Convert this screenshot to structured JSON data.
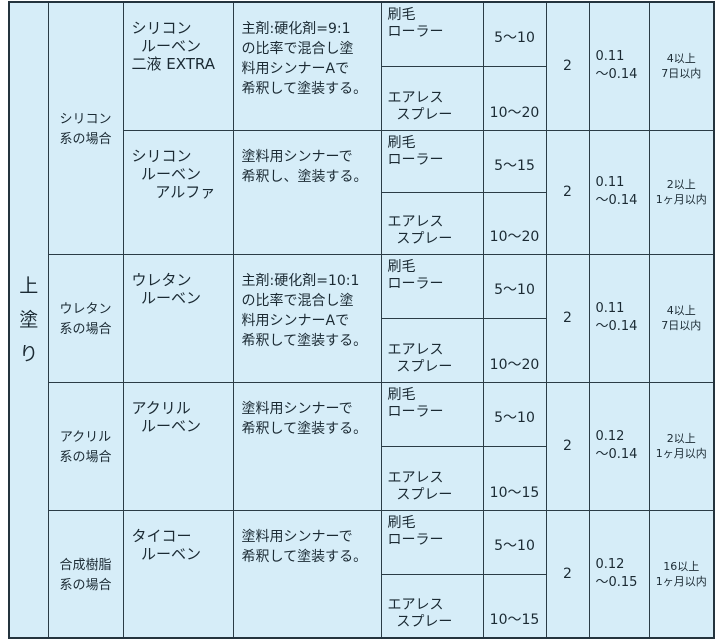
{
  "section_label": "上\n塗\nり",
  "groups": [
    {
      "category": "シリコン\n系の場合",
      "products": [
        {
          "name": "シリコン\n  ルーベン\n二液 EXTRA",
          "note": "主剤:硬化剤=9:1\nの比率で混合し塗\n料用シンナーAで\n希釈して塗装する。",
          "methods": [
            {
              "name": "刷毛\nローラー",
              "thinning": "5〜10"
            },
            {
              "name": "エアレス\n  スプレー",
              "thinning": "10〜20"
            }
          ],
          "coats": "2",
          "amount": "0.11\n〜0.14",
          "interval": "4以上\n7日以内"
        },
        {
          "name": "シリコン\n  ルーベン\n     アルファ",
          "note": "塗料用シンナーで\n希釈し、塗装する。",
          "methods": [
            {
              "name": "刷毛\nローラー",
              "thinning": "5〜15"
            },
            {
              "name": "エアレス\n  スプレー",
              "thinning": "10〜20"
            }
          ],
          "coats": "2",
          "amount": "0.11\n〜0.14",
          "interval": "2以上\n1ヶ月以内"
        }
      ]
    },
    {
      "category": "ウレタン\n系の場合",
      "products": [
        {
          "name": "ウレタン\n  ルーベン",
          "note": "主剤:硬化剤=10:1\nの比率で混合し塗\n料用シンナーAで\n希釈して塗装する。",
          "methods": [
            {
              "name": "刷毛\nローラー",
              "thinning": "5〜10"
            },
            {
              "name": "エアレス\n  スプレー",
              "thinning": "10〜20"
            }
          ],
          "coats": "2",
          "amount": "0.11\n〜0.14",
          "interval": "4以上\n7日以内"
        }
      ]
    },
    {
      "category": "アクリル\n系の場合",
      "products": [
        {
          "name": "アクリル\n  ルーベン",
          "note": "塗料用シンナーで\n希釈して塗装する。",
          "methods": [
            {
              "name": "刷毛\nローラー",
              "thinning": "5〜10"
            },
            {
              "name": "エアレス\n  スプレー",
              "thinning": "10〜15"
            }
          ],
          "coats": "2",
          "amount": "0.12\n〜0.14",
          "interval": "2以上\n1ヶ月以内"
        }
      ]
    },
    {
      "category": "合成樹脂\n系の場合",
      "products": [
        {
          "name": "タイコー\n  ルーベン",
          "note": "塗料用シンナーで\n希釈して塗装する。",
          "methods": [
            {
              "name": "刷毛\nローラー",
              "thinning": "5〜10"
            },
            {
              "name": "エアレス\n  スプレー",
              "thinning": "10〜15"
            }
          ],
          "coats": "2",
          "amount": "0.12\n〜0.15",
          "interval": "16以上\n1ヶ月以内"
        }
      ]
    }
  ]
}
